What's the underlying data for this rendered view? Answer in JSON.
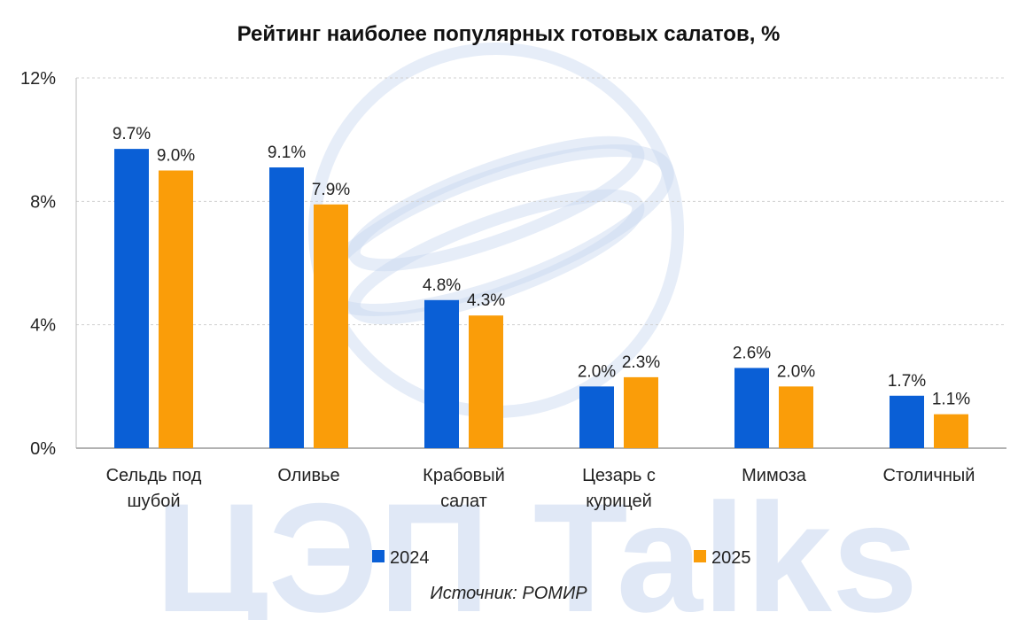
{
  "chart_data": {
    "type": "bar",
    "title": "Рейтинг наиболее популярных готовых салатов, %",
    "categories": [
      [
        "Сельдь под",
        "шубой"
      ],
      [
        "Оливье"
      ],
      [
        "Крабовый",
        "салат"
      ],
      [
        "Цезарь с",
        "курицей"
      ],
      [
        "Мимоза"
      ],
      [
        "Столичный"
      ]
    ],
    "series": [
      {
        "name": "2024",
        "color": "#0a5fd6",
        "values": [
          9.7,
          9.1,
          4.8,
          2.0,
          2.6,
          1.7
        ]
      },
      {
        "name": "2025",
        "color": "#fa9d09",
        "values": [
          9.0,
          7.9,
          4.3,
          2.3,
          2.0,
          1.1
        ]
      }
    ],
    "ylim": [
      0,
      12
    ],
    "yticks": [
      0,
      4,
      8,
      12
    ],
    "ytick_labels": [
      "0%",
      "4%",
      "8%",
      "12%"
    ],
    "value_suffix": "%",
    "grid": true,
    "legend_position": "bottom",
    "xlabel": "",
    "ylabel": ""
  },
  "source_text": "Источник: РОМИР",
  "watermark_text": "ЦЭП Talks"
}
